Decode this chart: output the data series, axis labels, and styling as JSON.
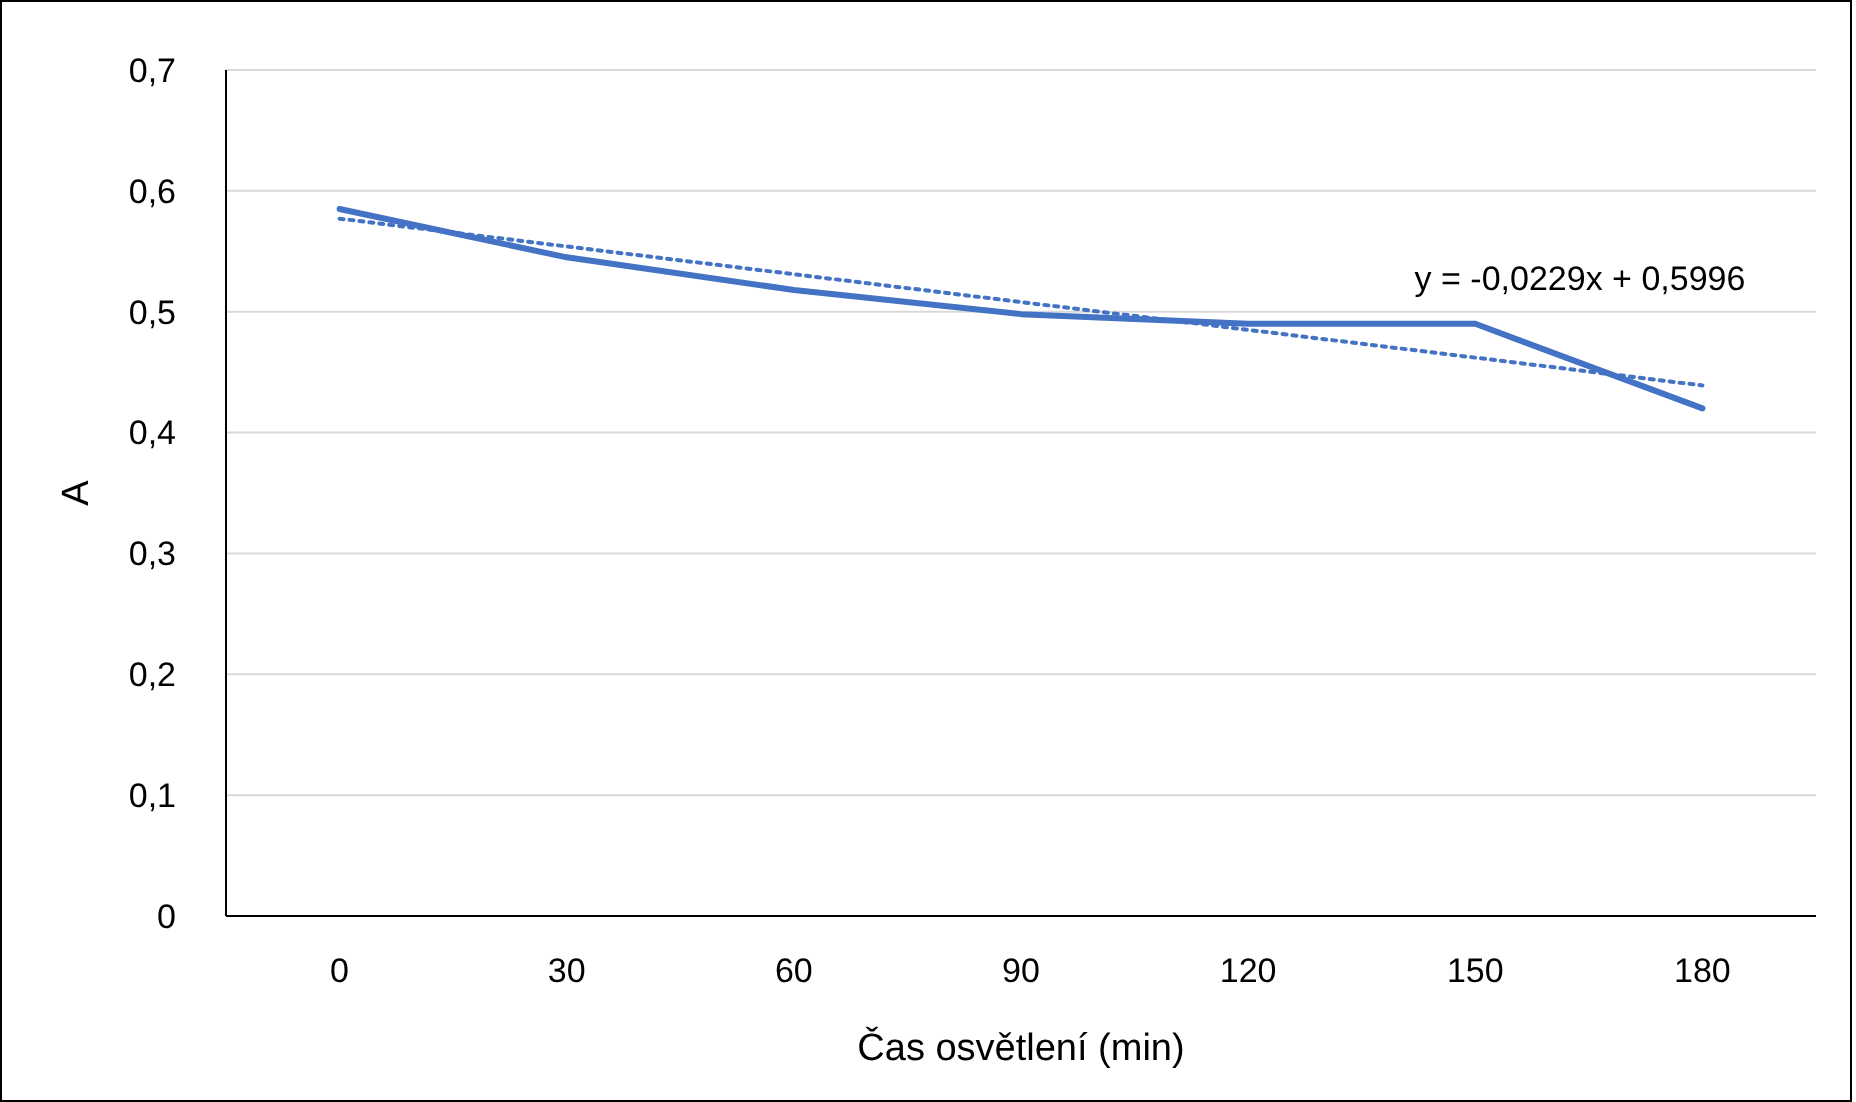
{
  "chart_data": {
    "type": "line",
    "xlabel": "Čas osvětlení (min)",
    "ylabel": "A",
    "categories": [
      "0",
      "30",
      "60",
      "90",
      "120",
      "150",
      "180"
    ],
    "series": [
      {
        "color": "#4472c4",
        "values": [
          0.585,
          0.545,
          0.518,
          0.498,
          0.49,
          0.49,
          0.42
        ],
        "line_style": "solid"
      },
      {
        "color": "#4472c4",
        "values": [
          0.577,
          0.554,
          0.531,
          0.508,
          0.485,
          0.462,
          0.439
        ],
        "line_style": "dotted"
      }
    ],
    "ylim": [
      0,
      0.7
    ],
    "yticks": [
      0,
      {
        "value": 0.1,
        "label": "0,1"
      },
      {
        "value": 0.2,
        "label": "0,2"
      },
      {
        "value": 0.3,
        "label": "0,3"
      },
      {
        "value": 0.4,
        "label": "0,4"
      },
      {
        "value": 0.5,
        "label": "0,5"
      },
      {
        "value": 0.6,
        "label": "0,6"
      },
      {
        "value": 0.7,
        "label": "0,7"
      }
    ],
    "grid": "y",
    "marker": "none",
    "annotations": [
      "y = -0,0229x + 0,5996"
    ]
  }
}
